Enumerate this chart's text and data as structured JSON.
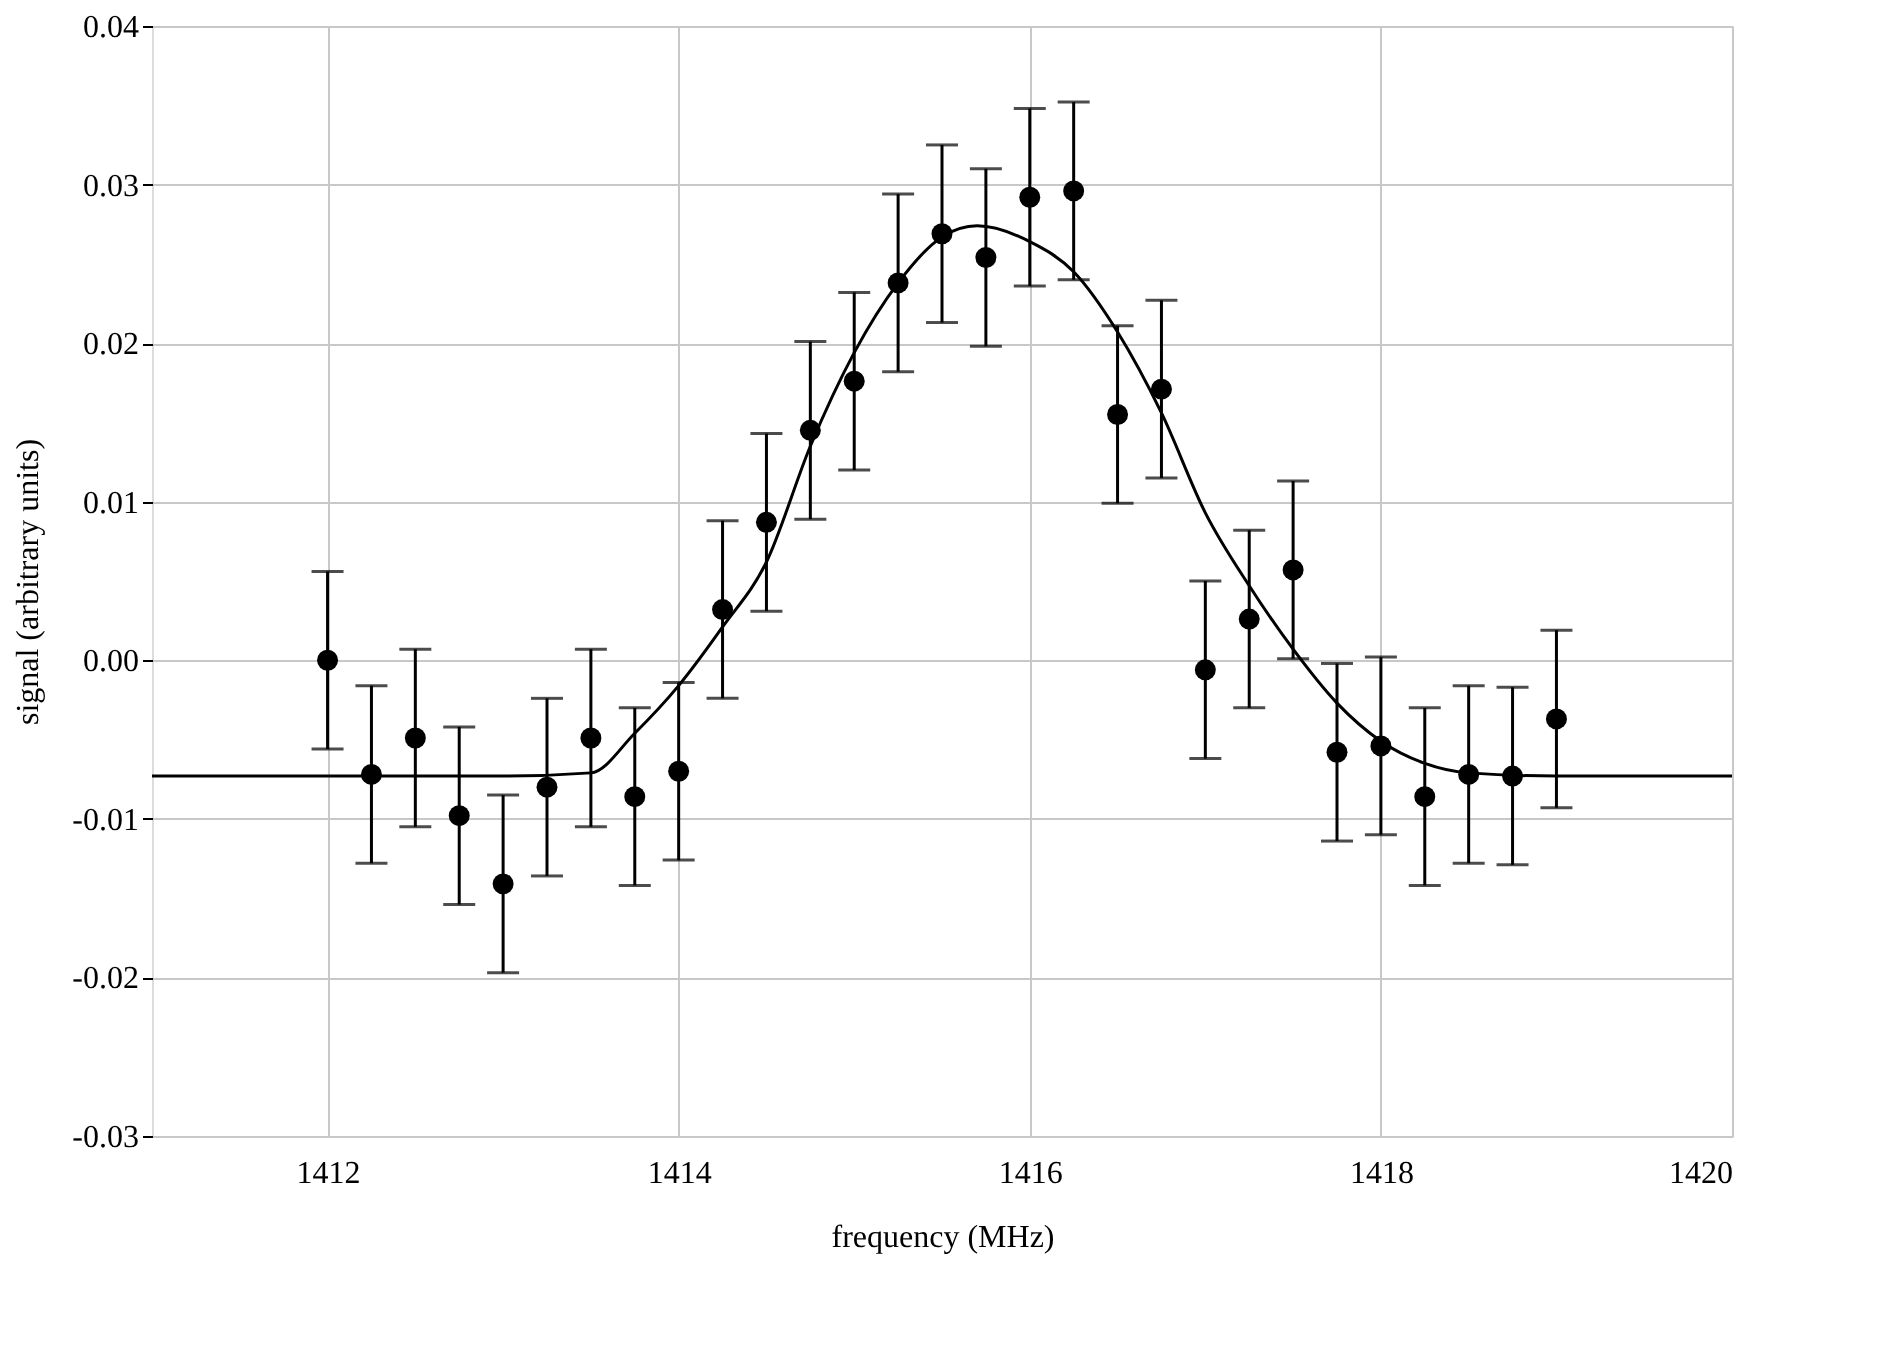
{
  "chart_data": {
    "type": "scatter",
    "xlabel": "frequency (MHz)",
    "ylabel": "signal (arbitrary units)",
    "xlim": [
      1411,
      1420
    ],
    "xticks": [
      1412,
      1414,
      1416,
      1418,
      1420
    ],
    "ylim": [
      -0.03,
      0.04
    ],
    "yticks": [
      -0.03,
      -0.02,
      -0.01,
      {
        "value": 0,
        "label": "0.00"
      },
      0.01,
      0.02,
      0.03,
      0.04
    ],
    "grid": true,
    "series": [
      {
        "color": "#000000",
        "marker": "circle",
        "x": [
          1412,
          1412.25,
          1412.5,
          1412.75,
          1413,
          1413.25,
          1413.5,
          1413.75,
          1414,
          1414.25,
          1414.5,
          1414.75,
          1415,
          1415.25,
          1415.5,
          1415.75,
          1416,
          1416.25,
          1416.5,
          1416.75,
          1417,
          1417.25,
          1417.5,
          1417.75,
          1418,
          1418.25,
          1418.5,
          1418.75,
          1419
        ],
        "values": [
          0.0,
          -0.0072,
          -0.0049,
          -0.0098,
          -0.0141,
          -0.008,
          -0.0049,
          -0.0086,
          -0.007,
          0.0032,
          0.0087,
          0.0145,
          0.0176,
          0.0238,
          0.0269,
          0.0254,
          0.0292,
          0.0296,
          0.0155,
          0.0171,
          -0.0006,
          0.0026,
          0.0057,
          -0.0058,
          -0.0054,
          -0.0086,
          -0.0072,
          -0.0073,
          -0.0037
        ],
        "errors": [
          0.0056,
          0.0056,
          0.0056,
          0.0056,
          0.0056,
          0.0056,
          0.0056,
          0.0056,
          0.0056,
          0.0056,
          0.0056,
          0.0056,
          0.0056,
          0.0056,
          0.0056,
          0.0056,
          0.0056,
          0.0056,
          0.0056,
          0.0056,
          0.0056,
          0.0056,
          0.0056,
          0.0056,
          0.0056,
          0.0056,
          0.0056,
          0.0056,
          0.0056
        ]
      },
      {
        "type": "line",
        "color": "#000000",
        "line_style": "solid",
        "marker": "none",
        "x": [
          1411,
          1412,
          1413,
          1413.5,
          1413.75,
          1414,
          1414.25,
          1414.5,
          1414.75,
          1415,
          1415.25,
          1415.5,
          1415.7,
          1416,
          1416.25,
          1416.5,
          1416.75,
          1417,
          1417.25,
          1417.5,
          1417.75,
          1418,
          1418.25,
          1418.5,
          1419,
          1420
        ],
        "values": [
          -0.0073,
          -0.0073,
          -0.0073,
          -0.0071,
          -0.0046,
          -0.0016,
          0.0021,
          0.0062,
          0.0135,
          0.0194,
          0.0238,
          0.0267,
          0.0274,
          0.0264,
          0.0245,
          0.0207,
          0.0156,
          0.0093,
          0.0047,
          0.0007,
          -0.0027,
          -0.0051,
          -0.0065,
          -0.0071,
          -0.0073,
          -0.0073
        ]
      }
    ]
  }
}
